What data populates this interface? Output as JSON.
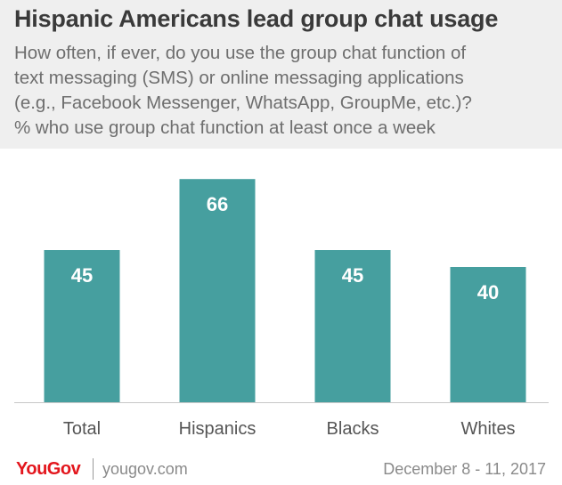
{
  "chart_data": {
    "type": "bar",
    "title": "Hispanic Americans lead group chat usage",
    "subtitle_lines": [
      "How often, if ever, do you use the group chat function of",
      "text messaging (SMS) or online messaging applications",
      "(e.g., Facebook Messenger, WhatsApp, GroupMe, etc.)?",
      "% who use group chat function at least once a week"
    ],
    "categories": [
      "Total",
      "Hispanics",
      "Blacks",
      "Whites"
    ],
    "values": [
      45,
      66,
      45,
      40
    ],
    "ylim": [
      0,
      75
    ],
    "grid": false,
    "bar_color": "#469f9f",
    "label_color": "#ffffff"
  },
  "footer": {
    "logo": "YouGov",
    "site": "yougov.com",
    "date": "December 8 - 11, 2017"
  },
  "colors": {
    "header_bg": "#efefef",
    "logo_red": "#e3161d"
  }
}
